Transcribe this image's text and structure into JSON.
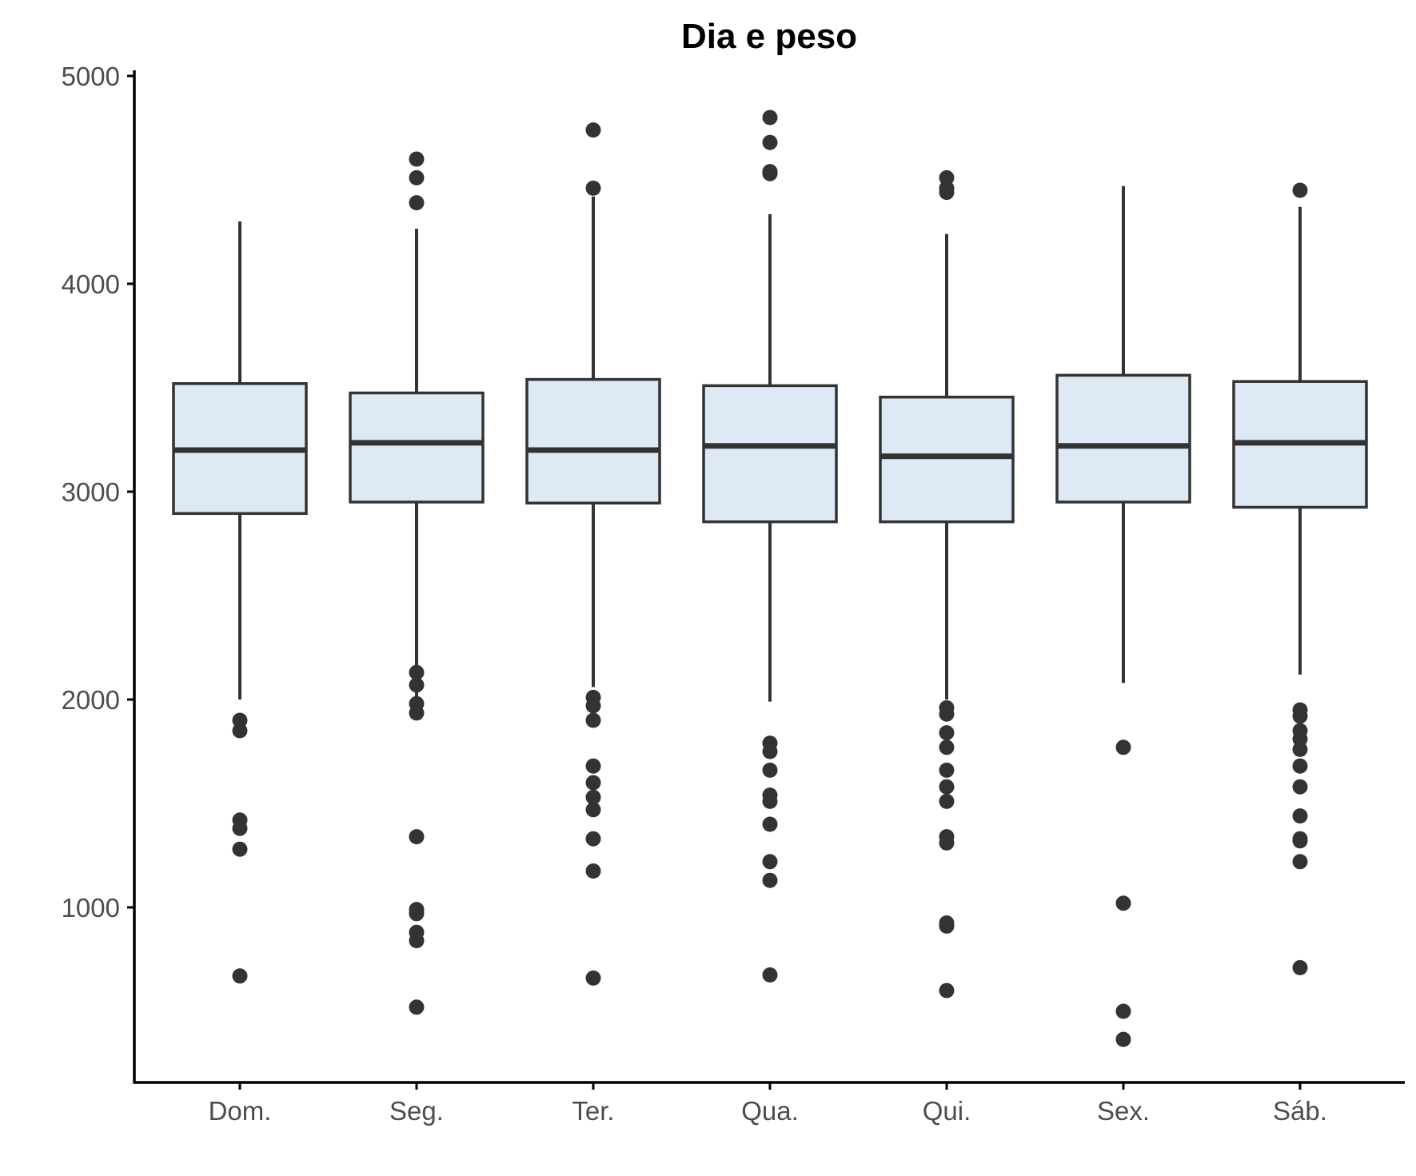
{
  "chart_data": {
    "type": "boxplot",
    "title": "Dia e peso",
    "xlabel": "",
    "ylabel": "",
    "ylim": [
      130,
      5020
    ],
    "yticks": [
      1000,
      2000,
      3000,
      4000,
      5000
    ],
    "grid": false,
    "legend": "none",
    "colors": {
      "box_fill": "#dde9f5",
      "stroke": "#333333",
      "axis": "#000000",
      "tick_text": "#4d4d4d"
    },
    "categories": [
      "Dom.",
      "Seg.",
      "Ter.",
      "Qua.",
      "Qui.",
      "Sex.",
      "Sáb."
    ],
    "boxes": [
      {
        "category": "Dom.",
        "q1": 2895,
        "median": 3200,
        "q3": 3520,
        "whisker_low": 2000,
        "whisker_high": 4300,
        "outliers": [
          1900,
          1850,
          1420,
          1380,
          1280,
          670
        ]
      },
      {
        "category": "Seg.",
        "q1": 2950,
        "median": 3235,
        "q3": 3475,
        "whisker_low": 1990,
        "whisker_high": 4265,
        "outliers": [
          4600,
          4510,
          4390,
          2130,
          2070,
          1980,
          1935,
          1340,
          990,
          970,
          880,
          840,
          520
        ]
      },
      {
        "category": "Ter.",
        "q1": 2945,
        "median": 3200,
        "q3": 3540,
        "whisker_low": 2060,
        "whisker_high": 4420,
        "outliers": [
          4740,
          4460,
          2010,
          1970,
          1900,
          1680,
          1600,
          1530,
          1470,
          1330,
          1175,
          660
        ]
      },
      {
        "category": "Qua.",
        "q1": 2855,
        "median": 3220,
        "q3": 3510,
        "whisker_low": 1990,
        "whisker_high": 4335,
        "outliers": [
          4800,
          4680,
          4540,
          4530,
          1790,
          1750,
          1660,
          1540,
          1510,
          1400,
          1220,
          1130,
          675
        ]
      },
      {
        "category": "Qui.",
        "q1": 2855,
        "median": 3170,
        "q3": 3455,
        "whisker_low": 2000,
        "whisker_high": 4240,
        "outliers": [
          4510,
          4460,
          4440,
          1960,
          1930,
          1840,
          1770,
          1660,
          1580,
          1510,
          1340,
          1310,
          925,
          910,
          600
        ]
      },
      {
        "category": "Sex.",
        "q1": 2950,
        "median": 3220,
        "q3": 3560,
        "whisker_low": 2080,
        "whisker_high": 4470,
        "outliers": [
          1770,
          1020,
          500,
          365
        ]
      },
      {
        "category": "Sáb.",
        "q1": 2925,
        "median": 3235,
        "q3": 3530,
        "whisker_low": 2120,
        "whisker_high": 4370,
        "outliers": [
          4450,
          1950,
          1920,
          1850,
          1810,
          1760,
          1680,
          1580,
          1440,
          1330,
          1320,
          1220,
          710
        ]
      }
    ]
  }
}
